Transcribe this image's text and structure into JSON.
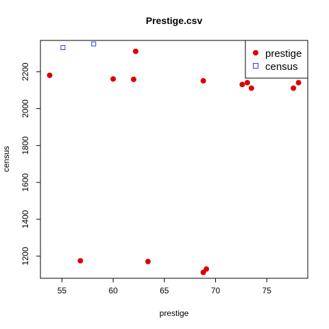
{
  "chart_data": {
    "type": "scatter",
    "title": "Prestige.csv",
    "xlabel": "prestige",
    "ylabel": "census",
    "xlim": [
      52.9,
      79.0
    ],
    "ylim": [
      1080,
      2370
    ],
    "x_ticks": [
      55,
      60,
      65,
      70,
      75
    ],
    "y_ticks": [
      1200,
      1400,
      1600,
      1800,
      2000,
      2200
    ],
    "grid": false,
    "legend_position": "top-right",
    "series": [
      {
        "name": "prestige",
        "marker": "filled-circle",
        "color": "#dd0000",
        "points": [
          {
            "x": 53.8,
            "y": 2181
          },
          {
            "x": 56.8,
            "y": 1175
          },
          {
            "x": 60.0,
            "y": 2161
          },
          {
            "x": 62.0,
            "y": 2159
          },
          {
            "x": 62.2,
            "y": 2311
          },
          {
            "x": 63.4,
            "y": 1171
          },
          {
            "x": 68.8,
            "y": 1112
          },
          {
            "x": 68.8,
            "y": 2151
          },
          {
            "x": 69.1,
            "y": 1130
          },
          {
            "x": 72.6,
            "y": 2131
          },
          {
            "x": 73.1,
            "y": 2141
          },
          {
            "x": 73.5,
            "y": 2111
          },
          {
            "x": 77.6,
            "y": 2111
          },
          {
            "x": 78.1,
            "y": 2141
          }
        ]
      },
      {
        "name": "census",
        "marker": "open-square",
        "color": "#3333ee",
        "points": [
          {
            "x": 55.1,
            "y": 2331
          },
          {
            "x": 58.1,
            "y": 2351
          }
        ]
      }
    ]
  }
}
